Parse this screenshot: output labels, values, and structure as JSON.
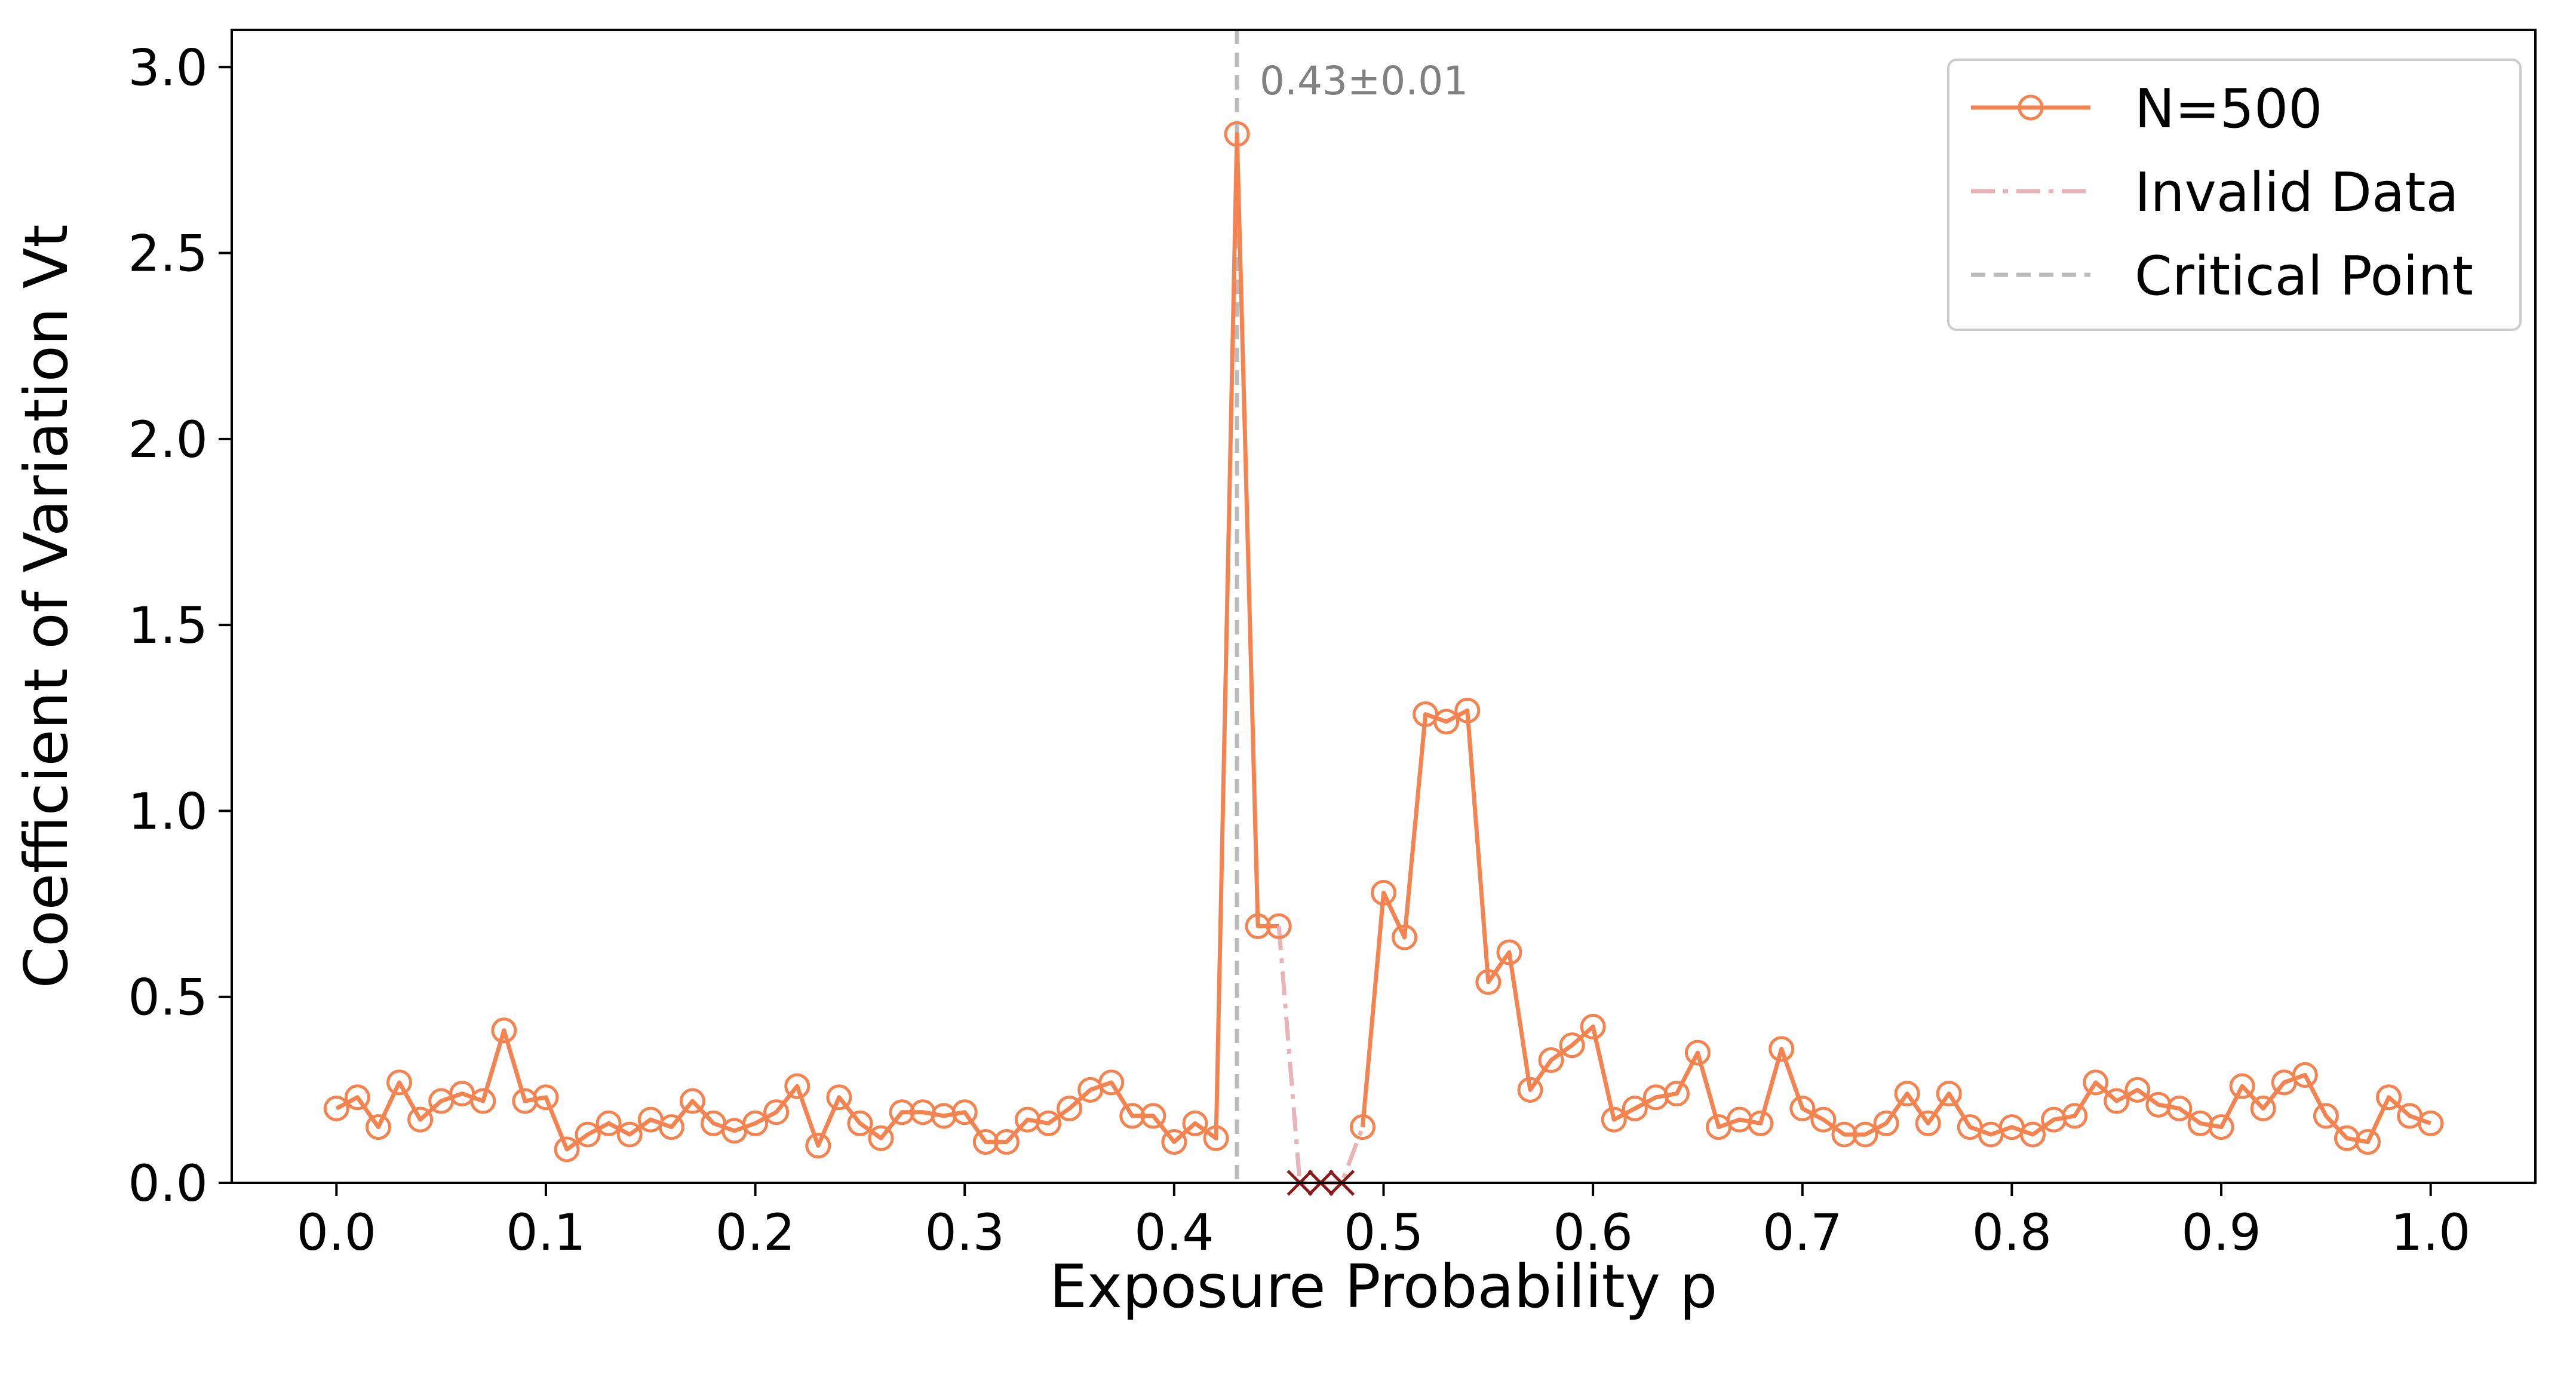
{
  "chart_data": {
    "type": "line",
    "xlabel": "Exposure Probability p",
    "ylabel": "Coefficient of Variation Vt",
    "xlim": [
      -0.05,
      1.05
    ],
    "ylim": [
      0.0,
      3.1
    ],
    "xticks": [
      "0.0",
      "0.1",
      "0.2",
      "0.3",
      "0.4",
      "0.5",
      "0.6",
      "0.7",
      "0.8",
      "0.9",
      "1.0"
    ],
    "yticks": [
      "0.0",
      "0.5",
      "1.0",
      "1.5",
      "2.0",
      "2.5",
      "3.0"
    ],
    "grid": false,
    "legend_position": "top-right",
    "series": [
      {
        "name": "N=500",
        "color": "#f5834f",
        "marker": "open-circle",
        "x": [
          0.0,
          0.01,
          0.02,
          0.03,
          0.04,
          0.05,
          0.06,
          0.07,
          0.08,
          0.09,
          0.1,
          0.11,
          0.12,
          0.13,
          0.14,
          0.15,
          0.16,
          0.17,
          0.18,
          0.19,
          0.2,
          0.21,
          0.22,
          0.23,
          0.24,
          0.25,
          0.26,
          0.27,
          0.28,
          0.29,
          0.3,
          0.31,
          0.32,
          0.33,
          0.34,
          0.35,
          0.36,
          0.37,
          0.38,
          0.39,
          0.4,
          0.41,
          0.42,
          0.43,
          0.44,
          0.45
        ],
        "y": [
          0.2,
          0.23,
          0.15,
          0.27,
          0.17,
          0.22,
          0.24,
          0.22,
          0.41,
          0.22,
          0.23,
          0.09,
          0.13,
          0.16,
          0.13,
          0.17,
          0.15,
          0.22,
          0.16,
          0.14,
          0.16,
          0.19,
          0.26,
          0.1,
          0.23,
          0.16,
          0.12,
          0.19,
          0.19,
          0.18,
          0.19,
          0.11,
          0.11,
          0.17,
          0.16,
          0.2,
          0.25,
          0.27,
          0.18,
          0.18,
          0.11,
          0.16,
          0.12,
          2.82,
          0.69,
          0.69
        ]
      },
      {
        "name": "",
        "color": "#f5834f",
        "marker": "open-circle",
        "x": [
          0.49,
          0.5,
          0.51,
          0.52,
          0.53,
          0.54,
          0.55,
          0.56,
          0.57,
          0.58,
          0.59,
          0.6,
          0.61,
          0.62,
          0.63,
          0.64,
          0.65,
          0.66,
          0.67,
          0.68,
          0.69,
          0.7,
          0.71,
          0.72,
          0.73,
          0.74,
          0.75,
          0.76,
          0.77,
          0.78,
          0.79,
          0.8,
          0.81,
          0.82,
          0.83,
          0.84,
          0.85,
          0.86,
          0.87,
          0.88,
          0.89,
          0.9,
          0.91,
          0.92,
          0.93,
          0.94,
          0.95,
          0.96,
          0.97,
          0.98,
          0.99,
          1.0
        ],
        "y": [
          0.15,
          0.78,
          0.66,
          1.26,
          1.24,
          1.27,
          0.54,
          0.62,
          0.25,
          0.33,
          0.37,
          0.42,
          0.17,
          0.2,
          0.23,
          0.24,
          0.35,
          0.15,
          0.17,
          0.16,
          0.36,
          0.2,
          0.17,
          0.13,
          0.13,
          0.16,
          0.24,
          0.16,
          0.24,
          0.15,
          0.13,
          0.15,
          0.13,
          0.17,
          0.18,
          0.27,
          0.22,
          0.25,
          0.21,
          0.2,
          0.16,
          0.15,
          0.26,
          0.2,
          0.27,
          0.29,
          0.18,
          0.12,
          0.11,
          0.23,
          0.18,
          0.16
        ]
      },
      {
        "name": "Invalid Data",
        "color": "#e8b4b8",
        "style": "dash-dot",
        "x": [
          0.45,
          0.46,
          0.47,
          0.48,
          0.49
        ],
        "y": [
          0.69,
          0.0,
          0.0,
          0.0,
          0.15
        ]
      }
    ],
    "invalid_markers": {
      "color": "#8b1a1a",
      "marker": "x",
      "x": [
        0.46,
        0.47,
        0.48
      ],
      "y": [
        0.0,
        0.0,
        0.0
      ]
    },
    "critical_point": {
      "name": "Critical Point",
      "color": "#bbbbbb",
      "style": "dashed",
      "x": 0.43,
      "annotation": "0.43±0.01",
      "annotation_color": "#808080"
    },
    "legend": [
      "N=500",
      "Invalid Data",
      "Critical Point"
    ]
  }
}
